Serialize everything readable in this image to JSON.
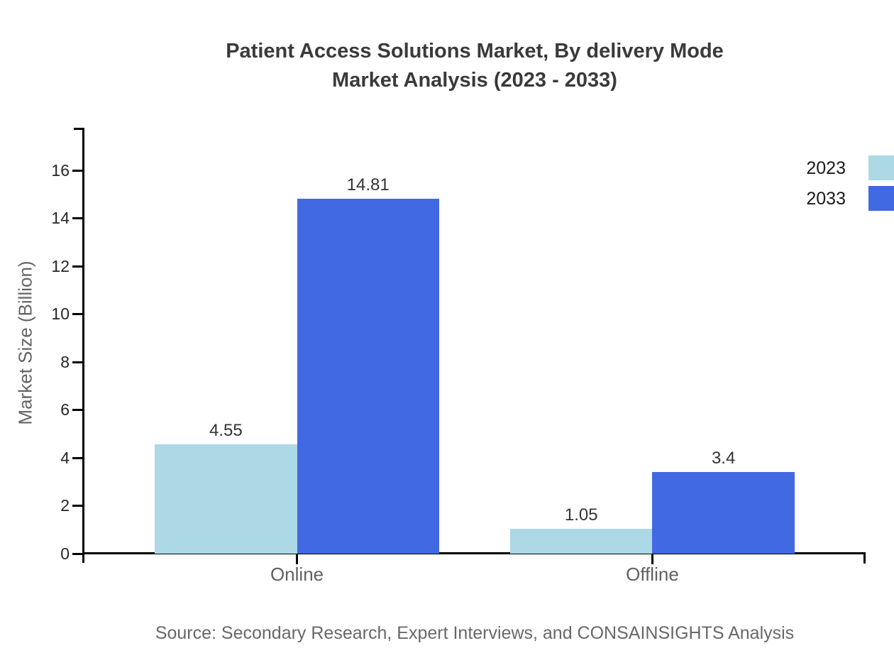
{
  "title": {
    "line1": "Patient Access Solutions Market, By delivery Mode",
    "line2": "Market Analysis (2023 - 2033)"
  },
  "source": "Source: Secondary Research, Expert Interviews, and CONSAINSIGHTS Analysis",
  "chart_data": {
    "type": "bar",
    "categories": [
      "Online",
      "Offline"
    ],
    "series": [
      {
        "name": "2023",
        "color": "#ADD8E6",
        "values": [
          4.55,
          1.05
        ]
      },
      {
        "name": "2033",
        "color": "#4169E1",
        "values": [
          14.81,
          3.4
        ]
      }
    ],
    "title": "Patient Access Solutions Market, By delivery Mode Market Analysis (2023 - 2033)",
    "xlabel": "",
    "ylabel": "Market Size (Billion)",
    "ylim": [
      0,
      16
    ],
    "yticks": [
      0,
      2,
      4,
      6,
      8,
      10,
      12,
      14,
      16
    ],
    "grid": false,
    "legend_position": "top-right",
    "value_labels_shown": true
  },
  "colors": {
    "axis": "#000000",
    "series_2023": "#ADD8E6",
    "series_2033": "#4169E1",
    "title_text": "#3a3a3a",
    "tick_text": "#262626",
    "muted_text": "#606060",
    "value_text": "#333333"
  }
}
